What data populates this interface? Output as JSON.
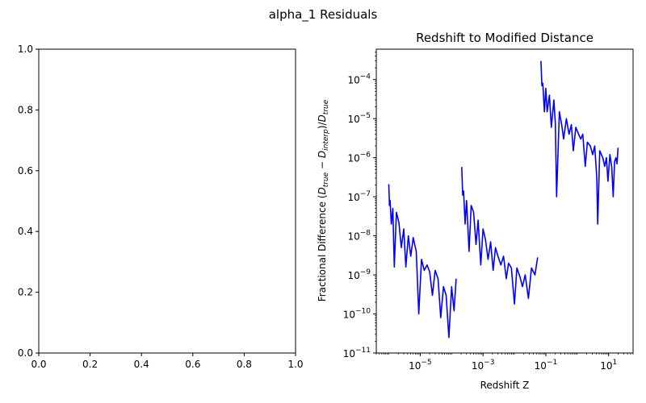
{
  "figure": {
    "suptitle": "alpha_1 Residuals"
  },
  "chart_data": [
    {
      "type": "line",
      "title": "",
      "xlabel": "",
      "ylabel": "",
      "xlim": [
        0,
        1
      ],
      "ylim": [
        0,
        1
      ],
      "x_ticks": [
        "0.0",
        "0.2",
        "0.4",
        "0.6",
        "0.8",
        "1.0"
      ],
      "y_ticks": [
        "0.0",
        "0.2",
        "0.4",
        "0.6",
        "0.8",
        "1.0"
      ],
      "series": []
    },
    {
      "type": "line",
      "title": "Redshift to Modified Distance",
      "xlabel": "Redshift Z",
      "ylabel": "Fractional Difference (D_true − D_interp)/D_true",
      "ylabel_parts": {
        "prefix": "Fractional Difference (",
        "d1": "D",
        "sub1": "true",
        "minus": " − ",
        "d2": "D",
        "sub2": "interp",
        "mid": ")/",
        "d3": "D",
        "sub3": "true"
      },
      "x_scale": "log",
      "y_scale": "log",
      "xlim": [
        4e-07,
        60
      ],
      "ylim": [
        1e-11,
        0.0006
      ],
      "x_ticks": [
        {
          "base": "10",
          "exp": "−5",
          "value": 1e-05
        },
        {
          "base": "10",
          "exp": "−3",
          "value": 0.001
        },
        {
          "base": "10",
          "exp": "−1",
          "value": 0.1
        },
        {
          "base": "10",
          "exp": "1",
          "value": 10
        }
      ],
      "y_ticks": [
        {
          "base": "10",
          "exp": "−11",
          "value": 1e-11
        },
        {
          "base": "10",
          "exp": "−10",
          "value": 1e-10
        },
        {
          "base": "10",
          "exp": "−9",
          "value": 1e-09
        },
        {
          "base": "10",
          "exp": "−8",
          "value": 1e-08
        },
        {
          "base": "10",
          "exp": "−7",
          "value": 1e-07
        },
        {
          "base": "10",
          "exp": "−6",
          "value": 1e-06
        },
        {
          "base": "10",
          "exp": "−5",
          "value": 1e-05
        },
        {
          "base": "10",
          "exp": "−4",
          "value": 0.0001
        }
      ],
      "line_color": "#0000ff",
      "segments": [
        [
          [
            1e-06,
            2.1e-07
          ],
          [
            1.05e-06,
            6e-08
          ],
          [
            1.1e-06,
            8e-08
          ],
          [
            1.2e-06,
            2e-08
          ],
          [
            1.35e-06,
            5e-08
          ],
          [
            1.5e-06,
            1.6e-09
          ],
          [
            1.75e-06,
            4e-08
          ],
          [
            2.1e-06,
            2.2e-08
          ],
          [
            2.5e-06,
            5e-09
          ],
          [
            3e-06,
            1.5e-08
          ],
          [
            3.5e-06,
            1.6e-09
          ],
          [
            4.2e-06,
            1e-08
          ],
          [
            5e-06,
            3e-09
          ],
          [
            6e-06,
            9e-09
          ],
          [
            7.5e-06,
            4e-09
          ],
          [
            9e-06,
            1e-10
          ],
          [
            1.1e-05,
            2.5e-09
          ],
          [
            1.35e-05,
            1.3e-09
          ],
          [
            1.65e-05,
            1.8e-09
          ],
          [
            2e-05,
            1.2e-09
          ],
          [
            2.45e-05,
            3e-10
          ],
          [
            3e-05,
            1.3e-09
          ],
          [
            3.7e-05,
            8e-10
          ],
          [
            4.5e-05,
            8e-11
          ],
          [
            5.5e-05,
            5e-10
          ],
          [
            6.7e-05,
            3e-10
          ],
          [
            8.2e-05,
            2.5e-11
          ],
          [
            0.0001,
            5e-10
          ],
          [
            0.00012,
            1.2e-10
          ],
          [
            0.00014,
            8e-10
          ]
        ],
        [
          [
            0.00021,
            5.8e-07
          ],
          [
            0.000225,
            1.1e-07
          ],
          [
            0.00024,
            1.4e-07
          ],
          [
            0.00027,
            2e-08
          ],
          [
            0.0003,
            8e-08
          ],
          [
            0.00036,
            4e-09
          ],
          [
            0.00042,
            6e-08
          ],
          [
            0.0005,
            4e-08
          ],
          [
            0.0006,
            6e-09
          ],
          [
            0.0007,
            2.5e-08
          ],
          [
            0.00085,
            1.8e-09
          ],
          [
            0.001,
            1.5e-08
          ],
          [
            0.0012,
            8e-09
          ],
          [
            0.00145,
            2.5e-09
          ],
          [
            0.00175,
            7e-09
          ],
          [
            0.0021,
            1.3e-09
          ],
          [
            0.0025,
            5e-09
          ],
          [
            0.003,
            3e-09
          ],
          [
            0.0037,
            1.8e-09
          ],
          [
            0.0045,
            3e-09
          ],
          [
            0.0055,
            8e-10
          ],
          [
            0.0065,
            2e-09
          ],
          [
            0.008,
            1.5e-09
          ],
          [
            0.01,
            1.8e-10
          ],
          [
            0.012,
            1.5e-09
          ],
          [
            0.015,
            9e-10
          ],
          [
            0.018,
            5e-10
          ],
          [
            0.022,
            1e-09
          ],
          [
            0.028,
            2.5e-10
          ],
          [
            0.035,
            1.5e-09
          ],
          [
            0.045,
            1e-09
          ],
          [
            0.055,
            2.8e-09
          ]
        ],
        [
          [
            0.07,
            0.0003
          ],
          [
            0.075,
            7e-05
          ],
          [
            0.08,
            8e-05
          ],
          [
            0.09,
            1.5e-05
          ],
          [
            0.1,
            6e-05
          ],
          [
            0.11,
            1.5e-05
          ],
          [
            0.13,
            4e-05
          ],
          [
            0.15,
            6e-06
          ],
          [
            0.18,
            3e-05
          ],
          [
            0.2,
            8e-06
          ],
          [
            0.22,
            1e-07
          ],
          [
            0.27,
            1.5e-05
          ],
          [
            0.32,
            7e-06
          ],
          [
            0.37,
            3e-06
          ],
          [
            0.45,
            1e-05
          ],
          [
            0.55,
            4e-06
          ],
          [
            0.65,
            7e-06
          ],
          [
            0.75,
            1.5e-06
          ],
          [
            0.9,
            6e-06
          ],
          [
            1.1,
            4e-06
          ],
          [
            1.3,
            3e-06
          ],
          [
            1.5,
            4e-06
          ],
          [
            1.8,
            6e-07
          ],
          [
            2.1,
            2.5e-06
          ],
          [
            2.6,
            2e-06
          ],
          [
            3.1,
            1.2e-06
          ],
          [
            3.6,
            2e-06
          ],
          [
            4.2,
            3e-07
          ],
          [
            4.5,
            2e-08
          ],
          [
            5.2,
            1.5e-06
          ],
          [
            6.5,
            1e-06
          ],
          [
            7.5,
            6e-07
          ],
          [
            8.5,
            1e-06
          ],
          [
            9.5,
            2.5e-07
          ],
          [
            11,
            1.2e-06
          ],
          [
            12.5,
            6e-07
          ],
          [
            14,
            1e-07
          ],
          [
            15.5,
            8e-07
          ],
          [
            17,
            1e-06
          ],
          [
            18.5,
            7e-07
          ],
          [
            20,
            1.8e-06
          ]
        ]
      ]
    }
  ]
}
